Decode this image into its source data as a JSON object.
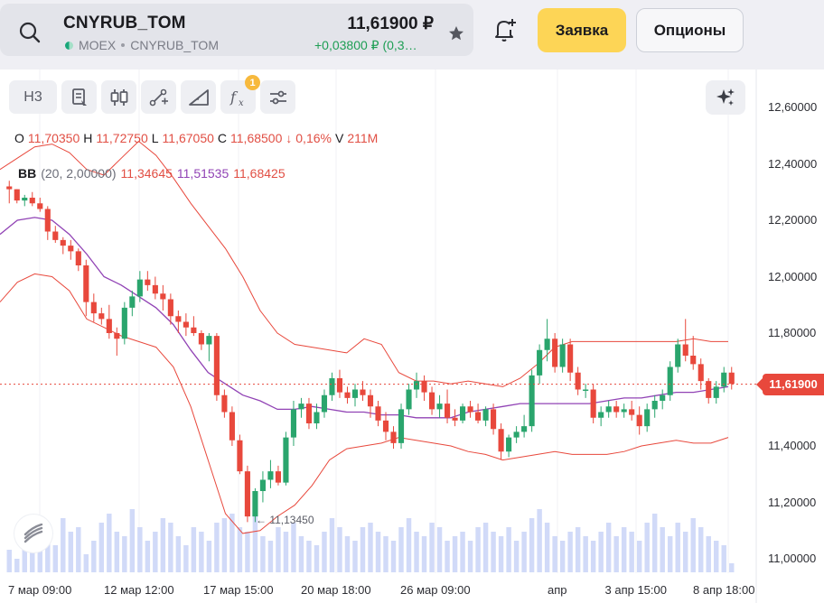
{
  "header": {
    "ticker": "CNYRUB_TOM",
    "exchange": "MOEX",
    "instrument": "CNYRUB_TOM",
    "price": "11,61900 ₽",
    "change": "+0,03800 ₽ (0,3…",
    "order_label": "Заявка",
    "options_label": "Опционы"
  },
  "toolbar": {
    "timeframe": "Н3",
    "tools": [
      "chart-type-icon",
      "candles-icon",
      "draw-line-icon",
      "ruler-icon",
      "indicators-fx-icon",
      "settings-sliders-icon"
    ],
    "fx_badge": "1"
  },
  "ohlc": {
    "o_key": "O",
    "o": "11,70350",
    "h_key": "H",
    "h": "11,72750",
    "l_key": "L",
    "l": "11,67050",
    "c_key": "C",
    "c": "11,68500",
    "pct": "↓ 0,16%",
    "v_key": "V",
    "v": "211M"
  },
  "bb": {
    "name": "BB",
    "params": "(20, 2,00000)",
    "lower": "11,34645",
    "middle": "11,51535",
    "upper": "11,68425"
  },
  "last_price_tag": "11,61900",
  "low_marker": "← 11,13450",
  "colors": {
    "up": "#2aa56d",
    "down": "#e8483c",
    "bb_band": "#e8483c",
    "bb_mid": "#9143b5",
    "volume": "#c9d4f7",
    "accent": "#fdd556"
  },
  "chart_data": {
    "type": "candlestick",
    "y_ticks": [
      "12,60000",
      "12,40000",
      "12,20000",
      "12,00000",
      "11,80000",
      "11,60000",
      "11,40000",
      "11,20000",
      "11,00000"
    ],
    "x_ticks": [
      "7 мар 09:00",
      "12 мар 12:00",
      "17 мар 15:00",
      "20 мар 18:00",
      "26 мар 09:00",
      "апр",
      "3 апр 15:00",
      "8 апр 18:00"
    ],
    "ylim": [
      11.0,
      12.62
    ],
    "last_price": 11.619,
    "candles": [
      [
        12.32,
        12.34,
        12.26,
        12.31
      ],
      [
        12.31,
        12.31,
        12.26,
        12.27
      ],
      [
        12.27,
        12.29,
        12.25,
        12.28
      ],
      [
        12.28,
        12.3,
        12.25,
        12.26
      ],
      [
        12.26,
        12.28,
        12.23,
        12.24
      ],
      [
        12.24,
        12.25,
        12.13,
        12.16
      ],
      [
        12.16,
        12.18,
        12.12,
        12.13
      ],
      [
        12.13,
        12.14,
        12.08,
        12.11
      ],
      [
        12.11,
        12.13,
        12.06,
        12.09
      ],
      [
        12.09,
        12.1,
        12.02,
        12.04
      ],
      [
        12.04,
        12.06,
        11.86,
        11.91
      ],
      [
        11.91,
        11.94,
        11.84,
        11.87
      ],
      [
        11.87,
        11.89,
        11.83,
        11.85
      ],
      [
        11.85,
        11.9,
        11.78,
        11.8
      ],
      [
        11.8,
        11.82,
        11.72,
        11.78
      ],
      [
        11.78,
        11.91,
        11.76,
        11.89
      ],
      [
        11.89,
        11.95,
        11.86,
        11.93
      ],
      [
        11.93,
        12.02,
        11.91,
        11.99
      ],
      [
        11.99,
        12.02,
        11.95,
        11.97
      ],
      [
        11.97,
        12.0,
        11.92,
        11.94
      ],
      [
        11.94,
        11.97,
        11.88,
        11.92
      ],
      [
        11.92,
        11.94,
        11.83,
        11.86
      ],
      [
        11.86,
        11.88,
        11.8,
        11.84
      ],
      [
        11.84,
        11.87,
        11.79,
        11.82
      ],
      [
        11.82,
        11.86,
        11.79,
        11.8
      ],
      [
        11.8,
        11.81,
        11.74,
        11.76
      ],
      [
        11.76,
        11.8,
        11.7,
        11.79
      ],
      [
        11.79,
        11.8,
        11.56,
        11.58
      ],
      [
        11.58,
        11.6,
        11.5,
        11.52
      ],
      [
        11.52,
        11.54,
        11.4,
        11.42
      ],
      [
        11.42,
        11.44,
        11.3,
        11.31
      ],
      [
        11.31,
        11.33,
        11.13,
        11.15
      ],
      [
        11.15,
        11.25,
        11.13,
        11.24
      ],
      [
        11.24,
        11.31,
        11.2,
        11.28
      ],
      [
        11.28,
        11.35,
        11.25,
        11.31
      ],
      [
        11.31,
        11.33,
        11.26,
        11.27
      ],
      [
        11.27,
        11.45,
        11.26,
        11.43
      ],
      [
        11.43,
        11.56,
        11.4,
        11.53
      ],
      [
        11.53,
        11.57,
        11.5,
        11.55
      ],
      [
        11.55,
        11.57,
        11.46,
        11.48
      ],
      [
        11.48,
        11.55,
        11.46,
        11.52
      ],
      [
        11.52,
        11.6,
        11.5,
        11.58
      ],
      [
        11.58,
        11.66,
        11.56,
        11.64
      ],
      [
        11.64,
        11.67,
        11.57,
        11.59
      ],
      [
        11.59,
        11.61,
        11.55,
        11.57
      ],
      [
        11.57,
        11.62,
        11.54,
        11.6
      ],
      [
        11.6,
        11.63,
        11.56,
        11.58
      ],
      [
        11.58,
        11.6,
        11.5,
        11.54
      ],
      [
        11.54,
        11.56,
        11.47,
        11.49
      ],
      [
        11.49,
        11.52,
        11.42,
        11.45
      ],
      [
        11.45,
        11.47,
        11.39,
        11.41
      ],
      [
        11.41,
        11.55,
        11.39,
        11.53
      ],
      [
        11.53,
        11.62,
        11.51,
        11.6
      ],
      [
        11.6,
        11.66,
        11.57,
        11.63
      ],
      [
        11.63,
        11.65,
        11.56,
        11.59
      ],
      [
        11.59,
        11.61,
        11.51,
        11.53
      ],
      [
        11.53,
        11.58,
        11.5,
        11.55
      ],
      [
        11.55,
        11.6,
        11.48,
        11.5
      ],
      [
        11.5,
        11.53,
        11.47,
        11.49
      ],
      [
        11.49,
        11.55,
        11.48,
        11.54
      ],
      [
        11.54,
        11.56,
        11.5,
        11.52
      ],
      [
        11.52,
        11.55,
        11.48,
        11.49
      ],
      [
        11.49,
        11.54,
        11.47,
        11.53
      ],
      [
        11.53,
        11.55,
        11.44,
        11.46
      ],
      [
        11.46,
        11.48,
        11.35,
        11.38
      ],
      [
        11.38,
        11.44,
        11.36,
        11.43
      ],
      [
        11.43,
        11.47,
        11.41,
        11.45
      ],
      [
        11.45,
        11.51,
        11.43,
        11.47
      ],
      [
        11.47,
        11.67,
        11.45,
        11.65
      ],
      [
        11.65,
        11.76,
        11.62,
        11.74
      ],
      [
        11.74,
        11.85,
        11.7,
        11.78
      ],
      [
        11.78,
        11.8,
        11.66,
        11.68
      ],
      [
        11.68,
        11.78,
        11.66,
        11.76
      ],
      [
        11.76,
        11.78,
        11.63,
        11.66
      ],
      [
        11.66,
        11.68,
        11.58,
        11.6
      ],
      [
        11.6,
        11.62,
        11.57,
        11.6
      ],
      [
        11.6,
        11.62,
        11.48,
        11.5
      ],
      [
        11.5,
        11.54,
        11.47,
        11.52
      ],
      [
        11.52,
        11.56,
        11.5,
        11.54
      ],
      [
        11.54,
        11.56,
        11.5,
        11.52
      ],
      [
        11.52,
        11.55,
        11.5,
        11.53
      ],
      [
        11.53,
        11.56,
        11.49,
        11.51
      ],
      [
        11.51,
        11.54,
        11.44,
        11.47
      ],
      [
        11.47,
        11.55,
        11.45,
        11.53
      ],
      [
        11.53,
        11.58,
        11.5,
        11.56
      ],
      [
        11.56,
        11.6,
        11.53,
        11.58
      ],
      [
        11.58,
        11.7,
        11.56,
        11.68
      ],
      [
        11.68,
        11.78,
        11.66,
        11.76
      ],
      [
        11.76,
        11.85,
        11.7,
        11.72
      ],
      [
        11.72,
        11.79,
        11.67,
        11.69
      ],
      [
        11.69,
        11.71,
        11.6,
        11.63
      ],
      [
        11.63,
        11.64,
        11.55,
        11.57
      ],
      [
        11.57,
        11.63,
        11.55,
        11.61
      ],
      [
        11.61,
        11.68,
        11.59,
        11.66
      ],
      [
        11.66,
        11.68,
        11.6,
        11.62
      ]
    ],
    "bb_upper": [
      12.38,
      12.42,
      12.46,
      12.47,
      12.44,
      12.38,
      12.36,
      12.42,
      12.48,
      12.43,
      12.35,
      12.26,
      12.18,
      12.1,
      12.0,
      11.88,
      11.8,
      11.76,
      11.75,
      11.74,
      11.73,
      11.78,
      11.76,
      11.66,
      11.63,
      11.63,
      11.62,
      11.63,
      11.62,
      11.61,
      11.64,
      11.69,
      11.75,
      11.77,
      11.77,
      11.77,
      11.77,
      11.77,
      11.77,
      11.77,
      11.78,
      11.77,
      11.77
    ],
    "bb_middle": [
      12.15,
      12.2,
      12.21,
      12.2,
      12.15,
      12.08,
      12.0,
      11.97,
      11.93,
      11.89,
      11.83,
      11.74,
      11.66,
      11.62,
      11.58,
      11.56,
      11.53,
      11.53,
      11.54,
      11.53,
      11.52,
      11.52,
      11.51,
      11.51,
      11.5,
      11.5,
      11.5,
      11.52,
      11.53,
      11.54,
      11.55,
      11.55,
      11.55,
      11.55,
      11.55,
      11.56,
      11.57,
      11.57,
      11.58,
      11.59,
      11.59,
      11.6,
      11.61
    ],
    "bb_lower": [
      11.91,
      11.98,
      12.01,
      12.0,
      11.95,
      11.85,
      11.82,
      11.79,
      11.77,
      11.75,
      11.68,
      11.54,
      11.35,
      11.16,
      11.09,
      11.1,
      11.15,
      11.19,
      11.26,
      11.35,
      11.39,
      11.4,
      11.41,
      11.43,
      11.42,
      11.41,
      11.4,
      11.38,
      11.37,
      11.35,
      11.36,
      11.37,
      11.38,
      11.37,
      11.37,
      11.37,
      11.38,
      11.4,
      11.41,
      11.42,
      11.41,
      11.41,
      11.43
    ],
    "volume": [
      0.25,
      0.15,
      0.4,
      0.3,
      0.55,
      0.35,
      0.3,
      0.6,
      0.45,
      0.5,
      0.2,
      0.35,
      0.55,
      0.65,
      0.45,
      0.4,
      0.7,
      0.5,
      0.35,
      0.45,
      0.6,
      0.55,
      0.4,
      0.3,
      0.5,
      0.45,
      0.35,
      0.55,
      0.6,
      0.65,
      0.5,
      0.45,
      0.7,
      0.4,
      0.35,
      0.5,
      0.45,
      0.55,
      0.4,
      0.35,
      0.3,
      0.45,
      0.6,
      0.5,
      0.4,
      0.35,
      0.5,
      0.55,
      0.45,
      0.4,
      0.35,
      0.5,
      0.6,
      0.45,
      0.4,
      0.55,
      0.5,
      0.35,
      0.4,
      0.45,
      0.35,
      0.5,
      0.55,
      0.45,
      0.4,
      0.5,
      0.35,
      0.45,
      0.6,
      0.7,
      0.55,
      0.4,
      0.35,
      0.45,
      0.5,
      0.4,
      0.35,
      0.45,
      0.55,
      0.4,
      0.5,
      0.45,
      0.35,
      0.55,
      0.65,
      0.5,
      0.4,
      0.55,
      0.45,
      0.6,
      0.5,
      0.4,
      0.35,
      0.3,
      0.1
    ]
  }
}
